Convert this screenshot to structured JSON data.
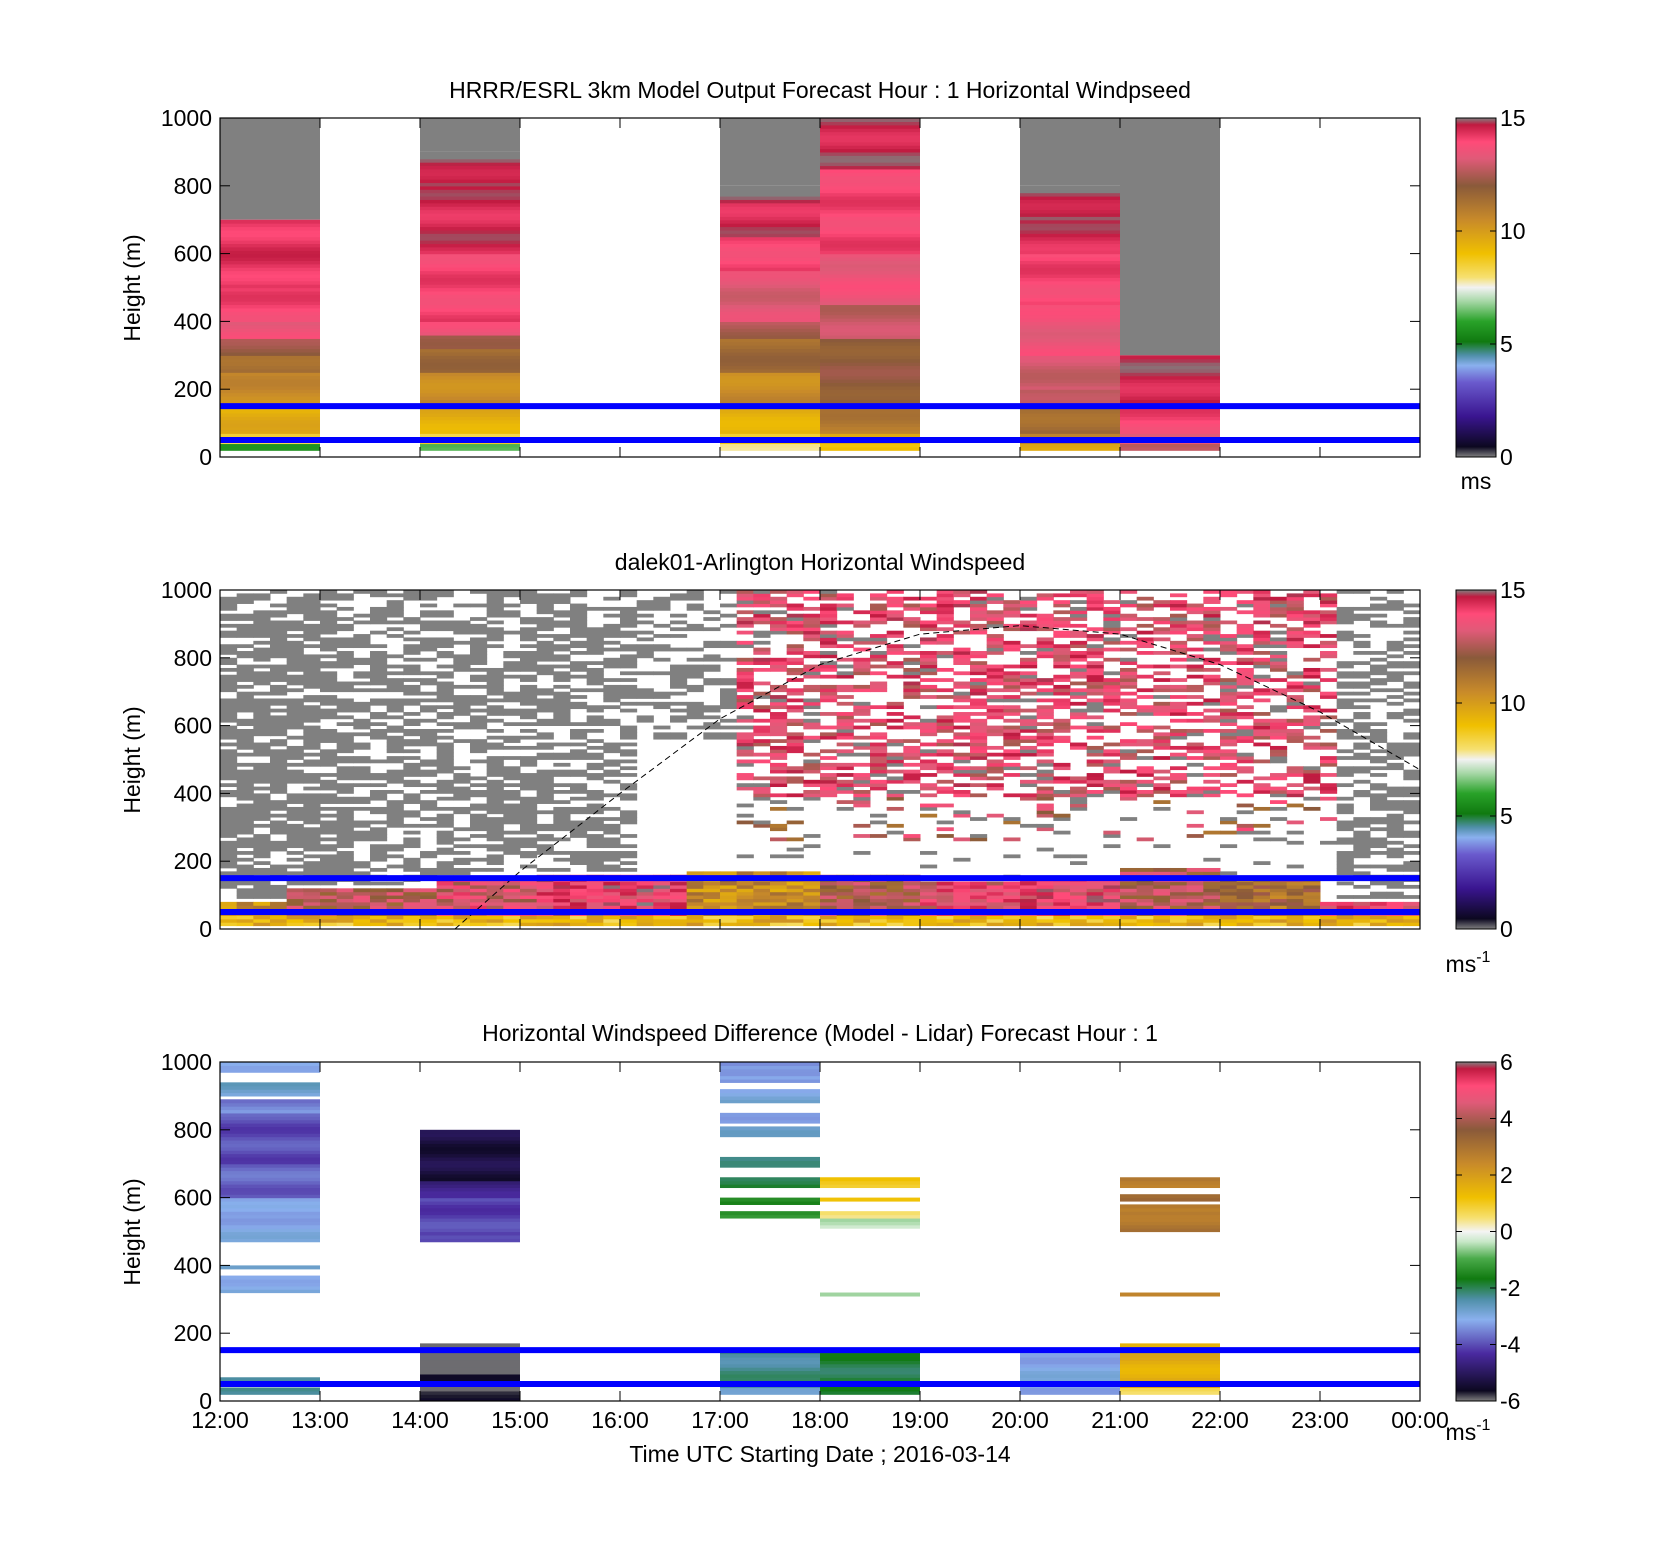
{
  "figure": {
    "xlabel": "Time UTC  Starting Date ; 2016-03-14",
    "time_ticks": [
      "12:00",
      "13:00",
      "14:00",
      "15:00",
      "16:00",
      "17:00",
      "18:00",
      "19:00",
      "20:00",
      "21:00",
      "22:00",
      "23:00",
      "00:00"
    ],
    "reference_lines_m": [
      50,
      150
    ],
    "reference_line_color": "#0000ff"
  },
  "chart_data": [
    {
      "type": "heatmap",
      "title": "HRRR/ESRL 3km Model Output   Forecast Hour : 1 Horizontal Windpseed",
      "ylabel": "Height (m)",
      "ylim": [
        0,
        1000
      ],
      "yticks": [
        0,
        200,
        400,
        600,
        800,
        1000
      ],
      "xlim_hours": [
        12,
        24
      ],
      "colorbar": {
        "label": "ms",
        "min": 0,
        "max": 15,
        "ticks": [
          0,
          5,
          10,
          15
        ]
      },
      "missing_color": "#808080",
      "columns": [
        {
          "start": 12,
          "end": 13,
          "profile": [
            [
              20,
              40,
              6
            ],
            [
              40,
              70,
              8.5
            ],
            [
              70,
              150,
              9.5
            ],
            [
              150,
              250,
              10.5
            ],
            [
              250,
              300,
              11.5
            ],
            [
              300,
              350,
              12.2
            ],
            [
              350,
              400,
              13.5
            ],
            [
              400,
              500,
              14
            ],
            [
              500,
              700,
              14.3
            ]
          ],
          "gray_above": 700
        },
        {
          "start": 14,
          "end": 15,
          "profile": [
            [
              20,
              40,
              6
            ],
            [
              40,
              70,
              8.5
            ],
            [
              70,
              150,
              9.5
            ],
            [
              150,
              250,
              10.5
            ],
            [
              250,
              320,
              11.5
            ],
            [
              320,
              360,
              12.5
            ],
            [
              360,
              400,
              13.5
            ],
            [
              400,
              600,
              14
            ],
            [
              600,
              800,
              14.5
            ],
            [
              800,
              900,
              14.8
            ]
          ],
          "gray_above": 900
        },
        {
          "start": 17,
          "end": 18,
          "profile": [
            [
              20,
              40,
              7.5
            ],
            [
              40,
              70,
              8.5
            ],
            [
              70,
              150,
              9.5
            ],
            [
              150,
              250,
              10.5
            ],
            [
              250,
              350,
              11.5
            ],
            [
              350,
              400,
              12.5
            ],
            [
              400,
              550,
              13.2
            ],
            [
              550,
              650,
              14
            ],
            [
              650,
              750,
              14.5
            ],
            [
              750,
              800,
              14.8
            ]
          ],
          "gray_above": 800
        },
        {
          "start": 18,
          "end": 19,
          "profile": [
            [
              20,
              40,
              9
            ],
            [
              40,
              70,
              10
            ],
            [
              70,
              150,
              11
            ],
            [
              150,
              350,
              12
            ],
            [
              350,
              450,
              12.8
            ],
            [
              450,
              600,
              13.5
            ],
            [
              600,
              850,
              14
            ],
            [
              850,
              1000,
              14.6
            ]
          ],
          "gray_above": null
        },
        {
          "start": 20,
          "end": 21,
          "profile": [
            [
              20,
              40,
              9.5
            ],
            [
              40,
              70,
              10.5
            ],
            [
              70,
              150,
              11.5
            ],
            [
              150,
              200,
              12.5
            ],
            [
              200,
              300,
              13
            ],
            [
              300,
              450,
              13.5
            ],
            [
              450,
              600,
              14
            ],
            [
              600,
              700,
              14.5
            ],
            [
              700,
              800,
              14.8
            ]
          ],
          "gray_above": 800
        },
        {
          "start": 21,
          "end": 22,
          "profile": [
            [
              20,
              40,
              12.5
            ],
            [
              40,
              70,
              13.5
            ],
            [
              70,
              150,
              14
            ],
            [
              150,
              300,
              14.6
            ]
          ],
          "gray_above": 300
        }
      ]
    },
    {
      "type": "heatmap",
      "title": "dalek01-Arlington  Horizontal Windspeed",
      "ylabel": "Height (m)",
      "ylim": [
        0,
        1000
      ],
      "yticks": [
        0,
        200,
        400,
        600,
        800,
        1000
      ],
      "xlim_hours": [
        12,
        24
      ],
      "colorbar": {
        "label": "ms-1",
        "min": 0,
        "max": 15,
        "ticks": [
          0,
          5,
          10,
          15
        ]
      },
      "missing_color": "#808080",
      "overlay_curve": {
        "style": "dashed",
        "points": [
          [
            14.35,
            0
          ],
          [
            15,
            170
          ],
          [
            16,
            400
          ],
          [
            17,
            620
          ],
          [
            18,
            780
          ],
          [
            19,
            870
          ],
          [
            20,
            895
          ],
          [
            21,
            870
          ],
          [
            22,
            780
          ],
          [
            23,
            640
          ],
          [
            24,
            470
          ]
        ]
      },
      "surface_layer": [
        {
          "start": 12,
          "end": 12.5,
          "top": 80,
          "value": 10.5
        },
        {
          "start": 12.5,
          "end": 14,
          "top": 120,
          "value": 12.5
        },
        {
          "start": 14,
          "end": 15,
          "top": 150,
          "value": 13.2
        },
        {
          "start": 15,
          "end": 16.5,
          "top": 160,
          "value": 14
        },
        {
          "start": 16.5,
          "end": 18,
          "top": 170,
          "value": 10.5
        },
        {
          "start": 18,
          "end": 19,
          "top": 160,
          "value": 12.3
        },
        {
          "start": 19,
          "end": 20,
          "top": 140,
          "value": 13.5
        },
        {
          "start": 20,
          "end": 21,
          "top": 150,
          "value": 13.8
        },
        {
          "start": 21,
          "end": 22,
          "top": 180,
          "value": 12.5
        },
        {
          "start": 22,
          "end": 23,
          "top": 150,
          "value": 11.5
        },
        {
          "start": 23,
          "end": 24,
          "top": 80,
          "value": 14
        }
      ]
    },
    {
      "type": "heatmap",
      "title": "Horizontal Windspeed Difference (Model - Lidar) Forecast Hour : 1",
      "ylabel": "Height (m)",
      "xlabel": "Time UTC  Starting Date ; 2016-03-14",
      "ylim": [
        0,
        1000
      ],
      "yticks": [
        0,
        200,
        400,
        600,
        800,
        1000
      ],
      "xlim_hours": [
        12,
        24
      ],
      "colorbar": {
        "label": "ms-1",
        "min": -6,
        "max": 6,
        "ticks": [
          -6,
          -4,
          -2,
          0,
          2,
          4,
          6
        ]
      },
      "missing_color": "#808080",
      "columns": [
        {
          "start": 12,
          "end": 13,
          "bands": [
            [
              20,
              40,
              -2.5
            ],
            [
              50,
              70,
              -2.3
            ],
            [
              320,
              370,
              -3
            ],
            [
              390,
              400,
              -3
            ],
            [
              470,
              550,
              -3.1
            ],
            [
              550,
              600,
              -3.3
            ],
            [
              600,
              700,
              -3.8
            ],
            [
              700,
              850,
              -4
            ],
            [
              850,
              890,
              -3.5
            ],
            [
              900,
              940,
              -2.8
            ],
            [
              970,
              1000,
              -3
            ]
          ]
        },
        {
          "start": 14,
          "end": 15,
          "bands": [
            [
              0,
              30,
              -5.5
            ],
            [
              30,
              60,
              -6.3
            ],
            [
              60,
              80,
              -5.8
            ],
            [
              80,
              160,
              -6.5
            ],
            [
              160,
              170,
              -7
            ],
            [
              470,
              490,
              -3.8
            ],
            [
              490,
              600,
              -4.1
            ],
            [
              600,
              650,
              -4.6
            ],
            [
              650,
              800,
              -5.3
            ]
          ]
        },
        {
          "start": 17,
          "end": 18,
          "bands": [
            [
              20,
              40,
              -2.6
            ],
            [
              40,
              150,
              -2.3
            ],
            [
              540,
              560,
              -1.2
            ],
            [
              580,
              600,
              -1.5
            ],
            [
              630,
              660,
              -1.8
            ],
            [
              690,
              720,
              -2.4
            ],
            [
              780,
              810,
              -2.9
            ],
            [
              820,
              850,
              -3.1
            ],
            [
              880,
              920,
              -3
            ],
            [
              940,
              960,
              -3.3
            ],
            [
              960,
              980,
              -3.6
            ],
            [
              980,
              1000,
              -3.4
            ]
          ]
        },
        {
          "start": 18,
          "end": 19,
          "bands": [
            [
              20,
              150,
              -1.9
            ],
            [
              310,
              320,
              -0.8
            ],
            [
              510,
              540,
              -0.3
            ],
            [
              540,
              560,
              0.6
            ],
            [
              590,
              600,
              1
            ],
            [
              630,
              660,
              1.1
            ]
          ]
        },
        {
          "start": 20,
          "end": 21,
          "bands": [
            [
              20,
              150,
              -3.1
            ]
          ]
        },
        {
          "start": 21,
          "end": 22,
          "bands": [
            [
              20,
              40,
              0.5
            ],
            [
              40,
              170,
              1.6
            ],
            [
              310,
              320,
              2.3
            ],
            [
              500,
              560,
              2.9
            ],
            [
              560,
              580,
              2.6
            ],
            [
              590,
              610,
              3.1
            ],
            [
              630,
              660,
              2.8
            ]
          ]
        }
      ]
    }
  ]
}
